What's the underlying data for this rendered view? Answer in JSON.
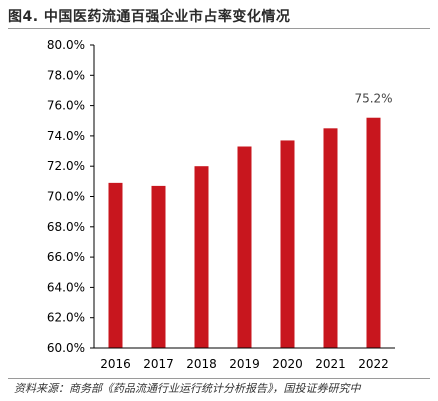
{
  "title": "图4. 中国医药流通百强企业市占率变化情况",
  "source": "资料来源：商务部《药品流通行业运行统计分析报告》，国投证券研究中",
  "chart_data": {
    "type": "bar",
    "categories": [
      "2016",
      "2017",
      "2018",
      "2019",
      "2020",
      "2021",
      "2022"
    ],
    "values": [
      70.9,
      70.7,
      72.0,
      73.3,
      73.7,
      74.5,
      75.2
    ],
    "ylim": [
      60,
      80
    ],
    "yticks": [
      "60.0%",
      "62.0%",
      "64.0%",
      "66.0%",
      "68.0%",
      "70.0%",
      "72.0%",
      "74.0%",
      "76.0%",
      "78.0%",
      "80.0%"
    ],
    "annotation": {
      "category": "2022",
      "text": "75.2%"
    },
    "bar_color": "#c8161e",
    "grid": false
  }
}
